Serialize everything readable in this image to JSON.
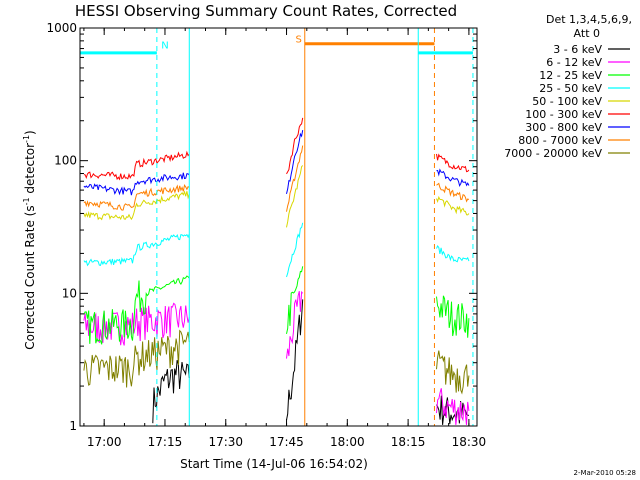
{
  "chart_data": {
    "type": "line",
    "title": "HESSI Observing Summary Count Rates, Corrected",
    "xlabel": "Start Time (14-Jul-06 16:54:02)",
    "ylabel_main": "Corrected Count Rate (s",
    "ylabel_sup1": "-1",
    "ylabel_mid": " detector",
    "ylabel_sup2": "-1",
    "ylabel_end": ")",
    "yscale": "log",
    "ylim": [
      1,
      1000
    ],
    "xlim": [
      "16:54:02",
      "18:32:00"
    ],
    "x_ticks": [
      {
        "t": "17:00",
        "label": "17:00"
      },
      {
        "t": "17:15",
        "label": "17:15"
      },
      {
        "t": "17:30",
        "label": "17:30"
      },
      {
        "t": "17:45",
        "label": "17:45"
      },
      {
        "t": "18:00",
        "label": "18:00"
      },
      {
        "t": "18:15",
        "label": "18:15"
      },
      {
        "t": "18:30",
        "label": "18:30"
      }
    ],
    "y_ticks": [
      {
        "v": 1,
        "label": "1"
      },
      {
        "v": 10,
        "label": "10"
      },
      {
        "v": 100,
        "label": "100"
      },
      {
        "v": 1000,
        "label": "1000"
      }
    ],
    "legend_header": [
      "Det 1,3,4,5,6,9,",
      "Att 0"
    ],
    "legend_position": "right",
    "series": [
      {
        "name": "3 - 6 keV",
        "color": "#000000",
        "segments": [
          [
            [
              "17:12",
              1.5
            ],
            [
              "17:15",
              2.2
            ],
            [
              "17:18",
              2.5
            ],
            [
              "17:21",
              2.3
            ]
          ],
          [
            [
              "17:45",
              1.2
            ],
            [
              "17:47",
              3.0
            ],
            [
              "17:49",
              9.0
            ]
          ],
          [
            [
              "18:22",
              1.4
            ],
            [
              "18:25",
              1.3
            ],
            [
              "18:30",
              1.2
            ]
          ]
        ]
      },
      {
        "name": "6 - 12 keV",
        "color": "#ff00ff",
        "segments": [
          [
            [
              "16:55",
              5.6
            ],
            [
              "17:07",
              5.8
            ],
            [
              "17:08",
              6.2
            ],
            [
              "17:21",
              6.6
            ]
          ],
          [
            [
              "17:45",
              3.0
            ],
            [
              "17:47",
              6.5
            ],
            [
              "17:49",
              10.0
            ]
          ],
          [
            [
              "18:22",
              1.6
            ],
            [
              "18:25",
              1.4
            ],
            [
              "18:30",
              1.3
            ]
          ]
        ]
      },
      {
        "name": "12 - 25 keV",
        "color": "#00ff00",
        "segments": [
          [
            [
              "16:55",
              5.8
            ],
            [
              "17:07",
              5.9
            ],
            [
              "17:08",
              9.5
            ],
            [
              "17:21",
              13.0
            ]
          ],
          [
            [
              "17:45",
              6.0
            ],
            [
              "17:47",
              10.0
            ],
            [
              "17:49",
              16.0
            ]
          ],
          [
            [
              "18:22",
              8.5
            ],
            [
              "18:26",
              6.8
            ],
            [
              "18:30",
              6.5
            ]
          ]
        ]
      },
      {
        "name": "25 - 50 keV",
        "color": "#00ffff",
        "segments": [
          [
            [
              "16:55",
              17.0
            ],
            [
              "17:07",
              17.5
            ],
            [
              "17:08",
              22.0
            ],
            [
              "17:21",
              28.0
            ]
          ],
          [
            [
              "17:45",
              14.0
            ],
            [
              "17:47",
              22.0
            ],
            [
              "17:49",
              34.0
            ]
          ],
          [
            [
              "18:22",
              22.0
            ],
            [
              "18:26",
              18.0
            ],
            [
              "18:30",
              17.5
            ]
          ]
        ]
      },
      {
        "name": "50 - 100 keV",
        "color": "#d8d800",
        "segments": [
          [
            [
              "16:55",
              39.0
            ],
            [
              "17:07",
              37.0
            ],
            [
              "17:08",
              47.0
            ],
            [
              "17:21",
              56.0
            ]
          ],
          [
            [
              "17:45",
              33.0
            ],
            [
              "17:47",
              55.0
            ],
            [
              "17:49",
              92.0
            ]
          ],
          [
            [
              "18:22",
              53.0
            ],
            [
              "18:26",
              44.0
            ],
            [
              "18:30",
              40.0
            ]
          ]
        ]
      },
      {
        "name": "100 - 300 keV",
        "color": "#ff0000",
        "segments": [
          [
            [
              "16:55",
              79.0
            ],
            [
              "17:07",
              76.0
            ],
            [
              "17:08",
              94.0
            ],
            [
              "17:21",
              112.0
            ]
          ],
          [
            [
              "17:45",
              75.0
            ],
            [
              "17:47",
              140.0
            ],
            [
              "17:49",
              210.0
            ]
          ],
          [
            [
              "18:22",
              108.0
            ],
            [
              "18:26",
              92.0
            ],
            [
              "18:30",
              85.0
            ]
          ]
        ]
      },
      {
        "name": "300 - 800 keV",
        "color": "#0000ff",
        "segments": [
          [
            [
              "16:55",
              64.0
            ],
            [
              "17:07",
              58.0
            ],
            [
              "17:08",
              70.0
            ],
            [
              "17:21",
              78.0
            ]
          ],
          [
            [
              "17:45",
              55.0
            ],
            [
              "17:47",
              110.0
            ],
            [
              "17:49",
              170.0
            ]
          ],
          [
            [
              "18:22",
              84.0
            ],
            [
              "18:26",
              72.0
            ],
            [
              "18:30",
              65.0
            ]
          ]
        ]
      },
      {
        "name": "800 - 7000 keV",
        "color": "#ff8000",
        "segments": [
          [
            [
              "16:55",
              49.0
            ],
            [
              "17:07",
              44.0
            ],
            [
              "17:08",
              56.0
            ],
            [
              "17:21",
              63.0
            ]
          ],
          [
            [
              "17:45",
              42.0
            ],
            [
              "17:47",
              75.0
            ],
            [
              "17:49",
              130.0
            ]
          ],
          [
            [
              "18:22",
              66.0
            ],
            [
              "18:26",
              57.0
            ],
            [
              "18:30",
              51.0
            ]
          ]
        ]
      },
      {
        "name": "7000 - 20000 keV",
        "color": "#808000",
        "segments": [
          [
            [
              "16:55",
              2.7
            ],
            [
              "17:07",
              2.8
            ],
            [
              "17:08",
              3.3
            ],
            [
              "17:21",
              4.3
            ]
          ],
          [
            [
              "18:22",
              3.0
            ],
            [
              "18:26",
              2.5
            ],
            [
              "18:30",
              2.4
            ]
          ]
        ]
      }
    ],
    "markers": [
      {
        "type": "line",
        "color": "#00ffff",
        "x": [
          "16:54:02",
          "17:13:00"
        ],
        "y": 650
      },
      {
        "type": "text",
        "color": "#00ffff",
        "x": "17:15",
        "y": 700,
        "text": "N"
      },
      {
        "type": "vline",
        "color": "#00ffff",
        "x": "17:13:00",
        "dash": true
      },
      {
        "type": "vline",
        "color": "#00ffff",
        "x": "17:21:00",
        "dash": false
      },
      {
        "type": "vline",
        "color": "#ff8000",
        "x": "17:49:30",
        "dash": false
      },
      {
        "type": "line",
        "color": "#ff8000",
        "x": [
          "17:49:30",
          "18:21:30"
        ],
        "y": 760
      },
      {
        "type": "text",
        "color": "#ff8000",
        "x": "17:48",
        "y": 780,
        "text": "S"
      },
      {
        "type": "vline",
        "color": "#ff8000",
        "x": "18:21:30",
        "dash": true
      },
      {
        "type": "vline",
        "color": "#00ffff",
        "x": "18:17:30",
        "dash": false
      },
      {
        "type": "line",
        "color": "#00ffff",
        "x": [
          "18:17:30",
          "18:31:00"
        ],
        "y": 650
      },
      {
        "type": "vline",
        "color": "#00ffff",
        "x": "18:31:00",
        "dash": true
      }
    ],
    "footer": "2-Mar-2010 05:28"
  }
}
